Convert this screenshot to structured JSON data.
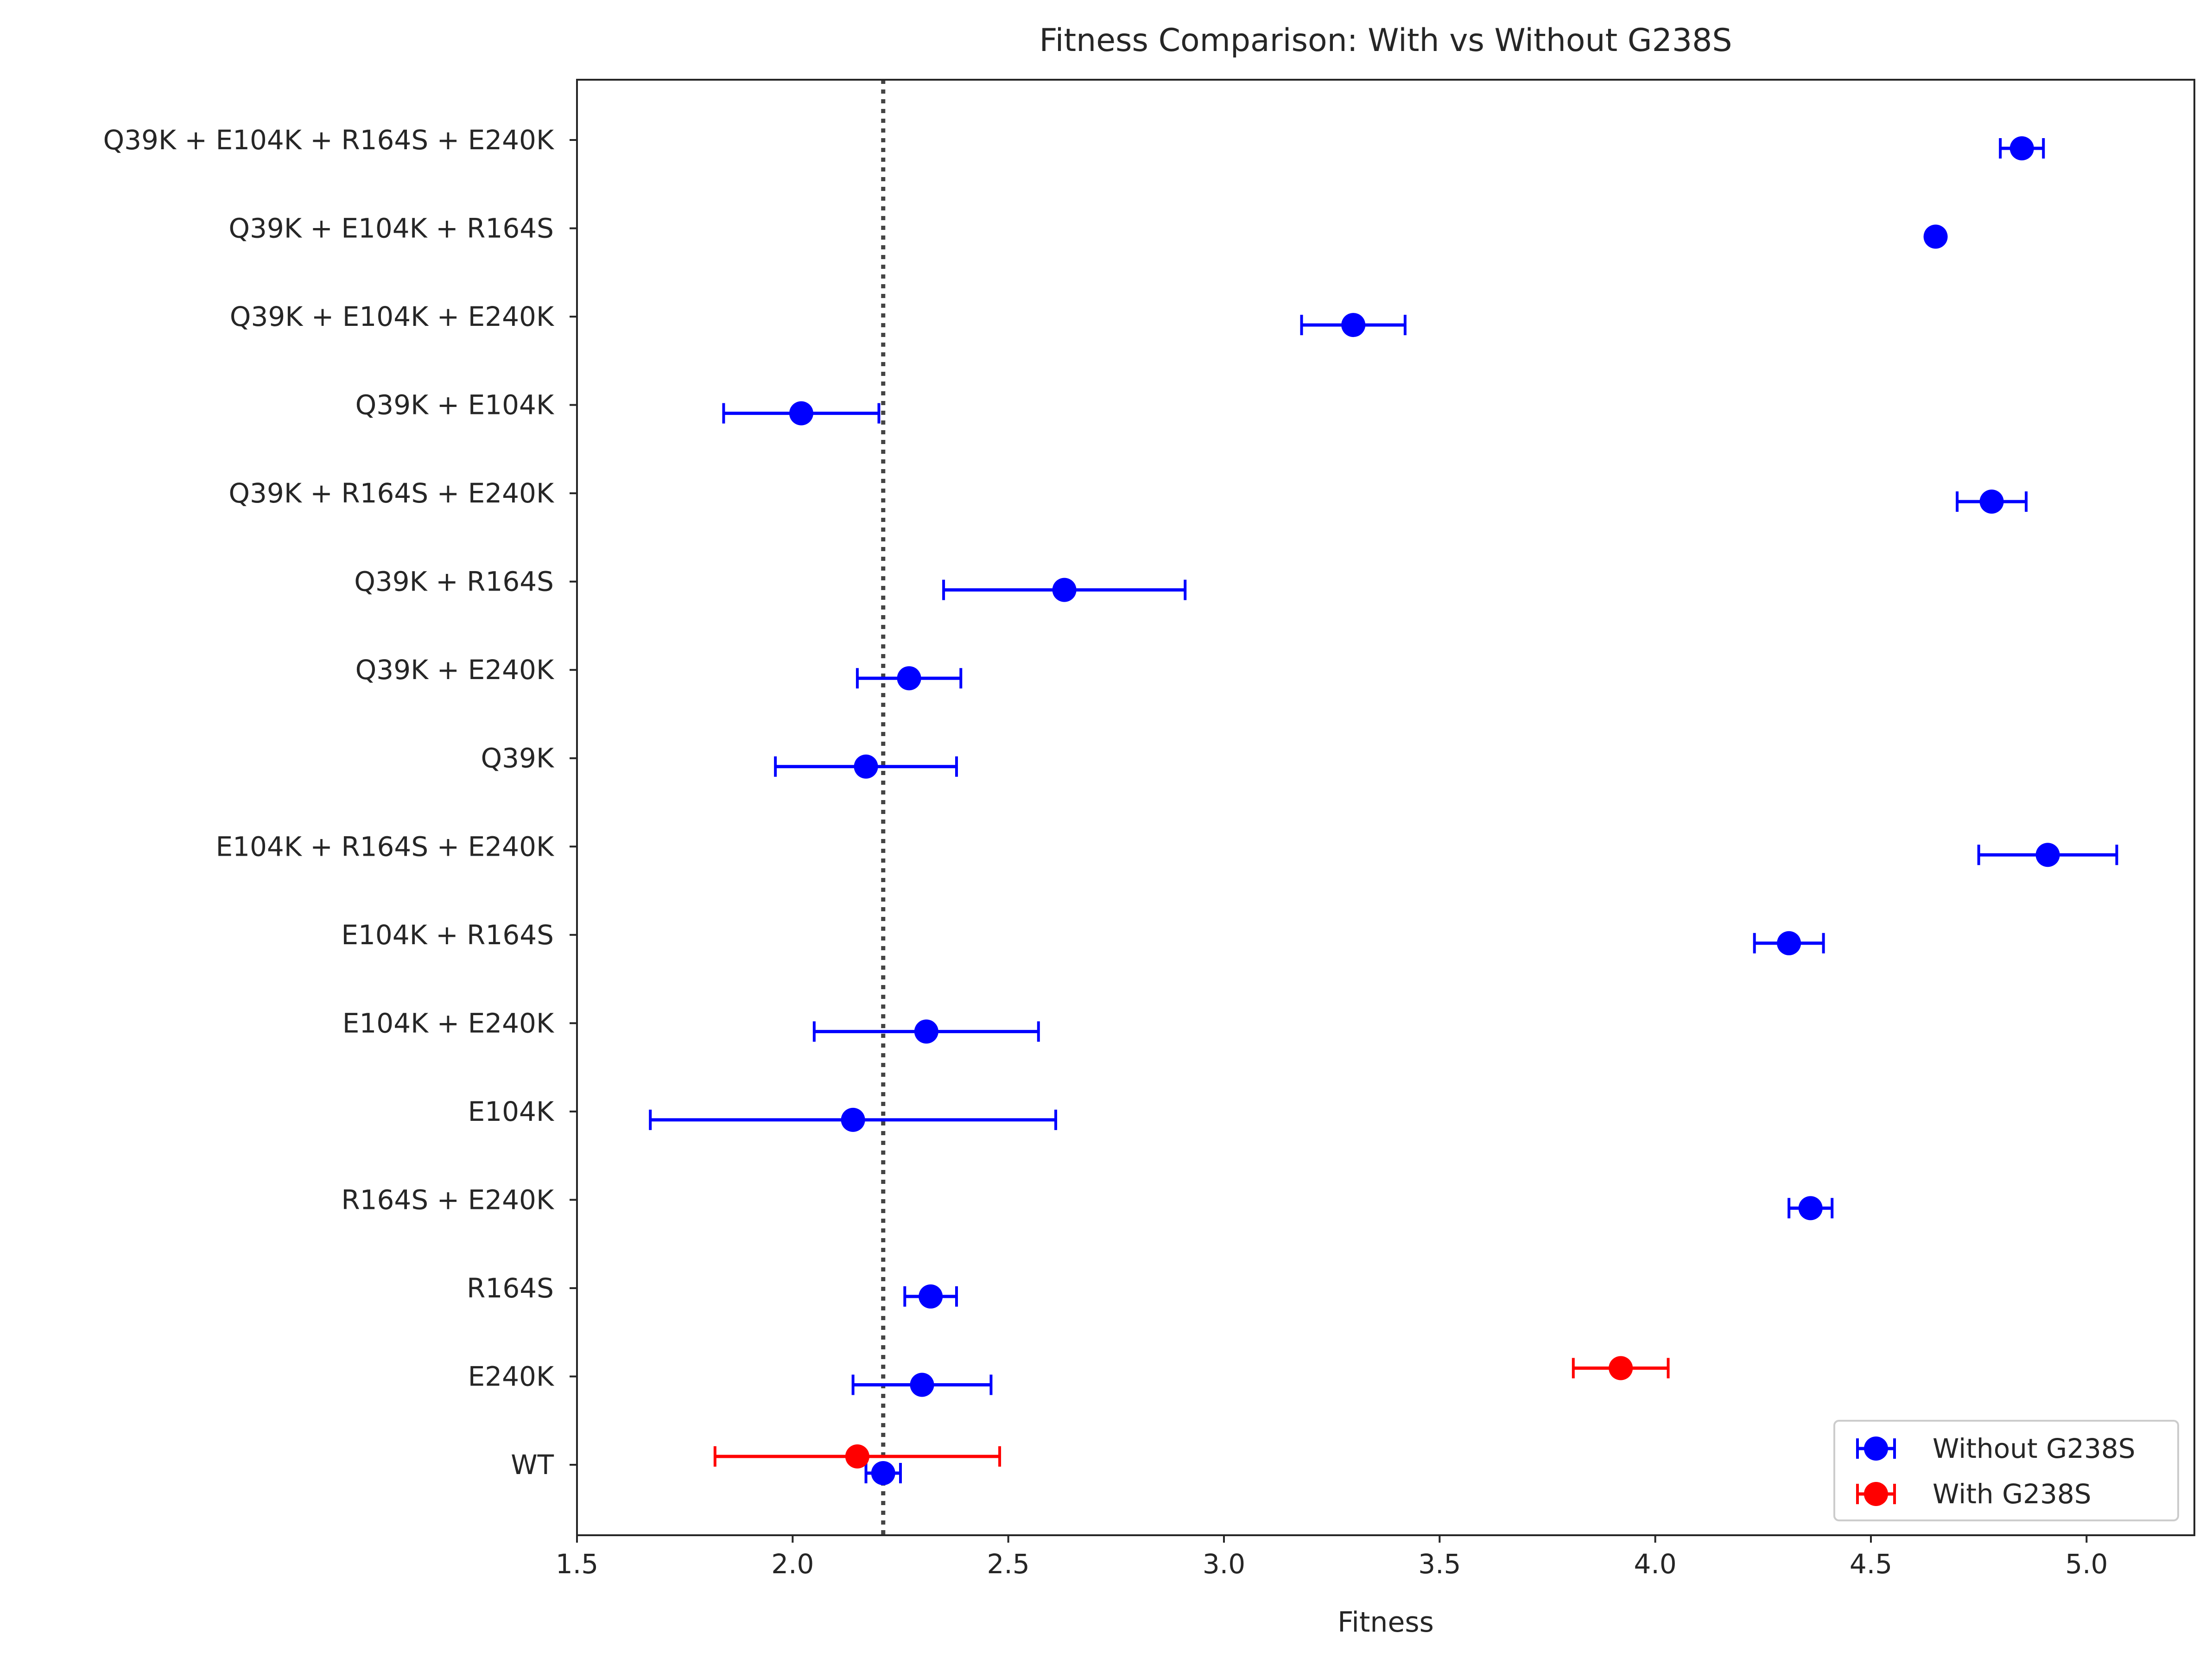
{
  "chart_data": {
    "type": "scatter",
    "title": "Fitness Comparison: With vs Without G238S",
    "xlabel": "Fitness",
    "ylabel": "",
    "xlim": [
      1.5,
      5.25
    ],
    "xticks": [
      "1.5",
      "2.0",
      "2.5",
      "3.0",
      "3.5",
      "4.0",
      "4.5",
      "5.0"
    ],
    "categories": [
      "Q39K + E104K + R164S + E240K",
      "Q39K + E104K + R164S",
      "Q39K + E104K + E240K",
      "Q39K + E104K",
      "Q39K + R164S + E240K",
      "Q39K + R164S",
      "Q39K + E240K",
      "Q39K",
      "E104K + R164S + E240K",
      "E104K + R164S",
      "E104K + E240K",
      "E104K",
      "R164S + E240K",
      "R164S",
      "E240K",
      "WT"
    ],
    "reference_line": {
      "x": 2.21,
      "style": "dotted",
      "color": "#444444"
    },
    "grid": false,
    "legend_position": "lower-right",
    "series": [
      {
        "name": "Without G238S",
        "color": "#0000ff",
        "points": [
          {
            "category": "Q39K + E104K + R164S + E240K",
            "x": 4.85,
            "err": 0.05
          },
          {
            "category": "Q39K + E104K + R164S",
            "x": 4.65,
            "err": 0
          },
          {
            "category": "Q39K + E104K + E240K",
            "x": 3.3,
            "err": 0.12
          },
          {
            "category": "Q39K + E104K",
            "x": 2.02,
            "err": 0.18
          },
          {
            "category": "Q39K + R164S + E240K",
            "x": 4.78,
            "err": 0.08
          },
          {
            "category": "Q39K + R164S",
            "x": 2.63,
            "err": 0.28
          },
          {
            "category": "Q39K + E240K",
            "x": 2.27,
            "err": 0.12
          },
          {
            "category": "Q39K",
            "x": 2.17,
            "err": 0.21
          },
          {
            "category": "E104K + R164S + E240K",
            "x": 4.91,
            "err": 0.16
          },
          {
            "category": "E104K + R164S",
            "x": 4.31,
            "err": 0.08
          },
          {
            "category": "E104K + E240K",
            "x": 2.31,
            "err": 0.26
          },
          {
            "category": "E104K",
            "x": 2.14,
            "err": 0.47
          },
          {
            "category": "R164S + E240K",
            "x": 4.36,
            "err": 0.05
          },
          {
            "category": "R164S",
            "x": 2.32,
            "err": 0.06
          },
          {
            "category": "E240K",
            "x": 2.3,
            "err": 0.16
          },
          {
            "category": "WT",
            "x": 2.21,
            "err": 0.04
          }
        ]
      },
      {
        "name": "With G238S",
        "color": "#ff0000",
        "points": [
          {
            "category": "E240K",
            "x": 3.92,
            "err": 0.11
          },
          {
            "category": "WT",
            "x": 2.15,
            "err": 0.33
          }
        ]
      }
    ]
  }
}
